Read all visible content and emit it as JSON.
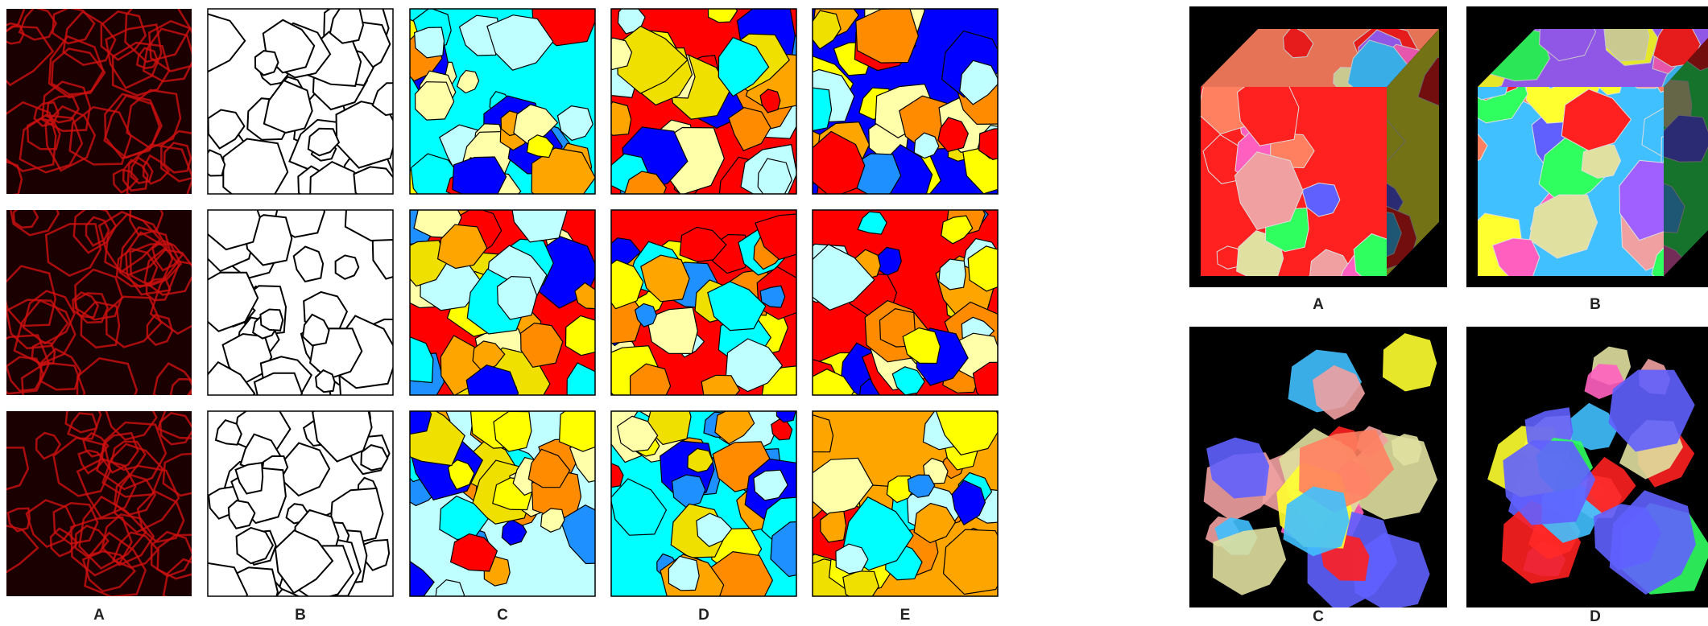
{
  "left_panel": {
    "labels": [
      "A",
      "B",
      "C",
      "D",
      "E"
    ]
  },
  "right_panel": {
    "labels": [
      "A",
      "B",
      "C",
      "D"
    ]
  }
}
